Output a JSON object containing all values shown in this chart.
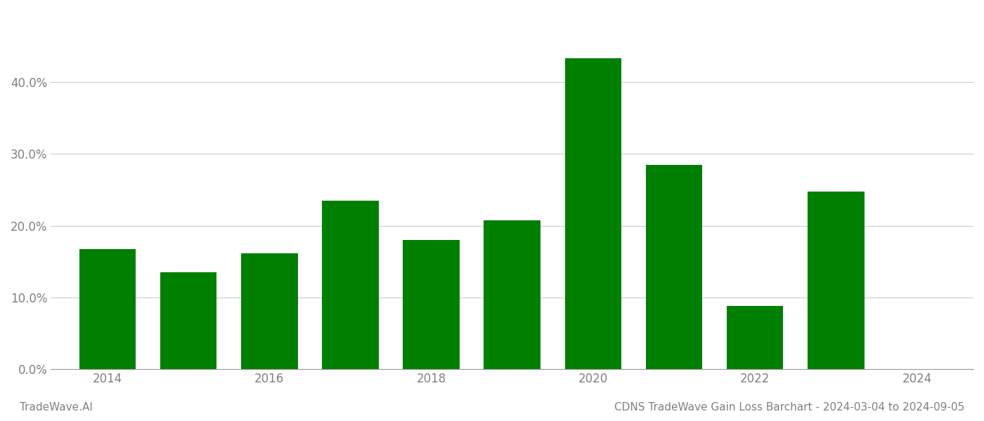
{
  "years": [
    2014,
    2015,
    2016,
    2017,
    2018,
    2019,
    2020,
    2021,
    2022,
    2023
  ],
  "values": [
    0.167,
    0.135,
    0.162,
    0.235,
    0.18,
    0.208,
    0.433,
    0.285,
    0.088,
    0.248
  ],
  "bar_color": "#008000",
  "background_color": "#ffffff",
  "grid_color": "#cccccc",
  "axis_color": "#999999",
  "tick_label_color": "#808080",
  "title": "CDNS TradeWave Gain Loss Barchart - 2024-03-04 to 2024-09-05",
  "watermark": "TradeWave.AI",
  "title_fontsize": 11,
  "watermark_fontsize": 11,
  "ylim": [
    0,
    0.5
  ],
  "yticks": [
    0.0,
    0.1,
    0.2,
    0.3,
    0.4
  ],
  "xticks": [
    2014,
    2016,
    2018,
    2020,
    2022,
    2024
  ],
  "xlim": [
    2013.3,
    2024.7
  ],
  "tick_fontsize": 12,
  "bar_width": 0.7
}
